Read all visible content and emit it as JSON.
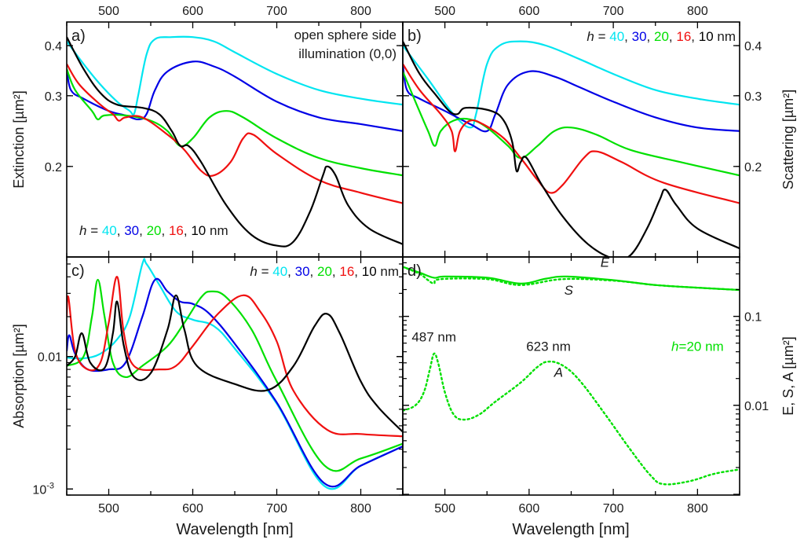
{
  "figure": {
    "xlabel": "Wavelength [nm]",
    "colors": {
      "h40": "#00e5f0",
      "h30": "#0000e6",
      "h20": "#00e000",
      "h16": "#f01010",
      "h10": "#000000"
    }
  },
  "chart_data": [
    {
      "id": "a",
      "type": "line",
      "panel_label": "a)",
      "title": "",
      "xlabel": "Wavelength [nm]",
      "ylabel": "Extinction [µm²]",
      "xlim": [
        450,
        850
      ],
      "ylim": [
        0.119,
        0.458
      ],
      "yscale": "log",
      "xticks": [
        500,
        600,
        700,
        800
      ],
      "yticks": [
        {
          "v": 0.2,
          "label": "0.2"
        },
        {
          "v": 0.3,
          "label": "0.3"
        },
        {
          "v": 0.4,
          "label": "0.4"
        }
      ],
      "annotations": [
        {
          "text": "open sphere side",
          "pos": "top-right-1"
        },
        {
          "text": "illumination (0,0)",
          "pos": "top-right-2"
        }
      ],
      "legend": {
        "pos": "bottom-left",
        "prefix": "h",
        "eq": " = ",
        "items": [
          "40",
          "30",
          "20",
          "16",
          "10"
        ],
        "suffix": " nm"
      },
      "series": [
        {
          "name": "h = 40 nm",
          "color": "#00e5f0",
          "style": "solid",
          "x": [
            450,
            470,
            490,
            510,
            525,
            530,
            535,
            545,
            555,
            575,
            600,
            625,
            650,
            700,
            750,
            800,
            850
          ],
          "y": [
            0.41,
            0.36,
            0.32,
            0.29,
            0.275,
            0.27,
            0.3,
            0.38,
            0.415,
            0.42,
            0.42,
            0.41,
            0.385,
            0.34,
            0.31,
            0.295,
            0.285
          ]
        },
        {
          "name": "h = 30 nm",
          "color": "#0000e6",
          "style": "solid",
          "x": [
            450,
            455,
            470,
            500,
            520,
            535,
            545,
            555,
            570,
            600,
            625,
            650,
            700,
            750,
            800,
            850
          ],
          "y": [
            0.35,
            0.31,
            0.295,
            0.275,
            0.268,
            0.262,
            0.27,
            0.31,
            0.345,
            0.365,
            0.355,
            0.335,
            0.29,
            0.265,
            0.255,
            0.245
          ]
        },
        {
          "name": "h = 20 nm",
          "color": "#00e000",
          "style": "solid",
          "x": [
            450,
            460,
            480,
            487,
            495,
            520,
            550,
            570,
            585,
            600,
            620,
            640,
            660,
            700,
            750,
            800,
            850
          ],
          "y": [
            0.35,
            0.31,
            0.275,
            0.262,
            0.268,
            0.268,
            0.26,
            0.245,
            0.225,
            0.235,
            0.265,
            0.275,
            0.265,
            0.235,
            0.21,
            0.198,
            0.19
          ]
        },
        {
          "name": "h = 16 nm",
          "color": "#f01010",
          "style": "solid",
          "x": [
            450,
            465,
            490,
            505,
            512,
            520,
            540,
            570,
            590,
            610,
            625,
            645,
            660,
            672,
            700,
            750,
            800,
            850
          ],
          "y": [
            0.36,
            0.32,
            0.285,
            0.27,
            0.26,
            0.265,
            0.265,
            0.24,
            0.22,
            0.195,
            0.19,
            0.205,
            0.235,
            0.24,
            0.215,
            0.185,
            0.172,
            0.162
          ]
        },
        {
          "name": "h = 10 nm",
          "color": "#000000",
          "style": "solid",
          "x": [
            450,
            470,
            490,
            510,
            540,
            560,
            575,
            585,
            595,
            610,
            640,
            670,
            700,
            720,
            740,
            755,
            760,
            770,
            785,
            810,
            850
          ],
          "y": [
            0.42,
            0.35,
            0.305,
            0.285,
            0.28,
            0.27,
            0.245,
            0.225,
            0.225,
            0.205,
            0.16,
            0.135,
            0.127,
            0.13,
            0.155,
            0.19,
            0.2,
            0.19,
            0.16,
            0.14,
            0.128
          ]
        }
      ]
    },
    {
      "id": "b",
      "type": "line",
      "panel_label": "b)",
      "title": "",
      "xlabel": "Wavelength [nm]",
      "ylabel": "Scattering  [µm²]",
      "xlim": [
        450,
        850
      ],
      "ylim": [
        0.119,
        0.458
      ],
      "yscale": "log",
      "xticks": [
        500,
        600,
        700,
        800
      ],
      "yticks": [
        {
          "v": 0.2,
          "label": "0.2"
        },
        {
          "v": 0.3,
          "label": "0.3"
        },
        {
          "v": 0.4,
          "label": "0.4"
        }
      ],
      "annotations": [],
      "legend": {
        "pos": "top-right",
        "prefix": "h",
        "eq": " = ",
        "items": [
          "40",
          "30",
          "20",
          "16",
          "10"
        ],
        "suffix": " nm"
      },
      "series": [
        {
          "name": "h = 40 nm",
          "color": "#00e5f0",
          "style": "solid",
          "x": [
            450,
            480,
            510,
            530,
            537,
            550,
            565,
            590,
            620,
            660,
            700,
            750,
            800,
            850
          ],
          "y": [
            0.4,
            0.33,
            0.27,
            0.25,
            0.27,
            0.36,
            0.4,
            0.41,
            0.4,
            0.37,
            0.34,
            0.31,
            0.295,
            0.285
          ]
        },
        {
          "name": "h = 30 nm",
          "color": "#0000e6",
          "style": "solid",
          "x": [
            450,
            455,
            470,
            500,
            530,
            550,
            560,
            575,
            600,
            630,
            660,
            700,
            750,
            800,
            850
          ],
          "y": [
            0.36,
            0.31,
            0.295,
            0.275,
            0.255,
            0.245,
            0.27,
            0.32,
            0.345,
            0.335,
            0.315,
            0.29,
            0.265,
            0.25,
            0.245
          ]
        },
        {
          "name": "h = 20 nm",
          "color": "#00e000",
          "style": "solid",
          "x": [
            450,
            465,
            480,
            488,
            495,
            510,
            530,
            550,
            575,
            590,
            610,
            630,
            650,
            680,
            720,
            780,
            850
          ],
          "y": [
            0.345,
            0.29,
            0.245,
            0.225,
            0.245,
            0.26,
            0.262,
            0.25,
            0.225,
            0.21,
            0.225,
            0.245,
            0.25,
            0.24,
            0.22,
            0.205,
            0.19
          ]
        },
        {
          "name": "h = 16 nm",
          "color": "#f01010",
          "style": "solid",
          "x": [
            450,
            470,
            495,
            508,
            512,
            518,
            530,
            545,
            570,
            590,
            610,
            625,
            640,
            665,
            680,
            710,
            760,
            850
          ],
          "y": [
            0.36,
            0.31,
            0.27,
            0.245,
            0.218,
            0.245,
            0.26,
            0.255,
            0.235,
            0.21,
            0.185,
            0.172,
            0.18,
            0.21,
            0.218,
            0.205,
            0.182,
            0.162
          ]
        },
        {
          "name": "h = 10 nm",
          "color": "#000000",
          "style": "solid",
          "x": [
            450,
            470,
            490,
            505,
            515,
            525,
            555,
            570,
            580,
            585,
            590,
            597,
            615,
            640,
            670,
            700,
            720,
            740,
            755,
            762,
            775,
            800,
            850
          ],
          "y": [
            0.41,
            0.34,
            0.3,
            0.275,
            0.27,
            0.28,
            0.275,
            0.26,
            0.23,
            0.195,
            0.205,
            0.21,
            0.18,
            0.15,
            0.128,
            0.118,
            0.12,
            0.14,
            0.165,
            0.175,
            0.16,
            0.14,
            0.125
          ]
        }
      ]
    },
    {
      "id": "c",
      "type": "line",
      "panel_label": "c)",
      "title": "",
      "xlabel": "Wavelength [nm]",
      "ylabel": "Absorption  [µm²]",
      "xlim": [
        450,
        850
      ],
      "ylim": [
        0.0009,
        0.0565
      ],
      "yscale": "log",
      "xticks": [
        500,
        600,
        700,
        800
      ],
      "yticks": [
        {
          "v": 0.001,
          "label": "10",
          "sup": "-3"
        },
        {
          "v": 0.01,
          "label": "0.01"
        }
      ],
      "annotations": [],
      "legend": {
        "pos": "top-right",
        "prefix": "h",
        "eq": " = ",
        "items": [
          "40",
          "30",
          "20",
          "16",
          "10"
        ],
        "suffix": " nm"
      },
      "series": [
        {
          "name": "h = 40 nm",
          "color": "#00e5f0",
          "style": "solid",
          "x": [
            450,
            470,
            490,
            510,
            525,
            540,
            545,
            560,
            580,
            600,
            625,
            650,
            700,
            757,
            800,
            850
          ],
          "y": [
            0.0098,
            0.0097,
            0.0105,
            0.0135,
            0.02,
            0.05,
            0.05,
            0.035,
            0.022,
            0.019,
            0.017,
            0.0115,
            0.0044,
            0.00105,
            0.0015,
            0.0021
          ]
        },
        {
          "name": "h = 30 nm",
          "color": "#0000e6",
          "style": "solid",
          "x": [
            450,
            453,
            460,
            475,
            500,
            520,
            540,
            555,
            570,
            585,
            600,
            620,
            650,
            700,
            757,
            800,
            850
          ],
          "y": [
            0.011,
            0.0145,
            0.0105,
            0.008,
            0.008,
            0.009,
            0.02,
            0.038,
            0.031,
            0.026,
            0.025,
            0.021,
            0.0125,
            0.0045,
            0.0011,
            0.0015,
            0.0021
          ]
        },
        {
          "name": "h = 20 nm",
          "color": "#00e000",
          "style": "solid",
          "x": [
            450,
            470,
            480,
            487,
            495,
            505,
            520,
            540,
            570,
            590,
            610,
            622,
            640,
            670,
            700,
            757,
            800,
            850
          ],
          "y": [
            0.0085,
            0.01,
            0.02,
            0.038,
            0.02,
            0.009,
            0.007,
            0.0085,
            0.012,
            0.018,
            0.028,
            0.031,
            0.028,
            0.016,
            0.0065,
            0.0015,
            0.0017,
            0.0022
          ]
        },
        {
          "name": "h = 16 nm",
          "color": "#f01010",
          "style": "solid",
          "x": [
            450,
            452,
            460,
            475,
            490,
            500,
            510,
            518,
            530,
            560,
            580,
            600,
            630,
            660,
            680,
            700,
            720,
            760,
            800,
            850
          ],
          "y": [
            0.02,
            0.028,
            0.011,
            0.008,
            0.009,
            0.018,
            0.04,
            0.015,
            0.0085,
            0.008,
            0.0085,
            0.012,
            0.021,
            0.029,
            0.022,
            0.013,
            0.0055,
            0.0028,
            0.0026,
            0.0025
          ]
        },
        {
          "name": "h = 10 nm",
          "color": "#000000",
          "style": "solid",
          "x": [
            450,
            460,
            468,
            478,
            495,
            505,
            510,
            518,
            530,
            550,
            570,
            580,
            590,
            605,
            650,
            690,
            720,
            745,
            760,
            775,
            800,
            820,
            850
          ],
          "y": [
            0.0085,
            0.01,
            0.015,
            0.009,
            0.0082,
            0.015,
            0.026,
            0.012,
            0.007,
            0.0075,
            0.016,
            0.029,
            0.016,
            0.0085,
            0.0062,
            0.0056,
            0.0085,
            0.017,
            0.021,
            0.015,
            0.0065,
            0.0042,
            0.0027
          ]
        }
      ]
    },
    {
      "id": "d",
      "type": "line",
      "panel_label": "d)",
      "title": "",
      "xlabel": "Wavelength [nm]",
      "ylabel": "E, S, A  [µm²]",
      "xlim": [
        450,
        850
      ],
      "ylim": [
        0.00098,
        0.465
      ],
      "yscale": "log",
      "xticks": [
        500,
        600,
        700,
        800
      ],
      "yticks": [
        {
          "v": 0.01,
          "label": "0.01"
        },
        {
          "v": 0.1,
          "label": "0.1"
        }
      ],
      "annotations": [
        {
          "text": "E",
          "italic": true,
          "x": 690,
          "y": 0.36
        },
        {
          "text": "S",
          "italic": true,
          "x": 647,
          "y": 0.175
        },
        {
          "text": "487 nm",
          "x": 487,
          "y": 0.052
        },
        {
          "text": "623 nm",
          "x": 623,
          "y": 0.041
        },
        {
          "text": "A",
          "italic": true,
          "x": 635,
          "y": 0.021
        },
        {
          "text": "h=20 nm",
          "color": "#00e000",
          "x": 800,
          "y": 0.041
        }
      ],
      "legend": null,
      "series": [
        {
          "name": "E",
          "color": "#00e000",
          "style": "solid",
          "x": [
            450,
            470,
            487,
            500,
            550,
            590,
            620,
            645,
            700,
            750,
            800,
            850
          ],
          "y": [
            0.36,
            0.31,
            0.272,
            0.28,
            0.272,
            0.234,
            0.265,
            0.28,
            0.255,
            0.225,
            0.21,
            0.198
          ]
        },
        {
          "name": "S",
          "color": "#00e000",
          "style": "dotted",
          "x": [
            450,
            470,
            480,
            487,
            495,
            550,
            590,
            640,
            700,
            750,
            800,
            850
          ],
          "y": [
            0.36,
            0.3,
            0.255,
            0.235,
            0.262,
            0.262,
            0.225,
            0.262,
            0.252,
            0.225,
            0.21,
            0.198
          ]
        },
        {
          "name": "A",
          "color": "#00e000",
          "style": "dotted",
          "x": [
            450,
            465,
            475,
            482,
            487,
            492,
            500,
            510,
            522,
            540,
            560,
            590,
            610,
            623,
            640,
            660,
            690,
            720,
            745,
            760,
            790,
            820,
            850
          ],
          "y": [
            0.0087,
            0.01,
            0.014,
            0.025,
            0.038,
            0.03,
            0.014,
            0.008,
            0.0069,
            0.0078,
            0.011,
            0.018,
            0.027,
            0.031,
            0.028,
            0.019,
            0.008,
            0.0032,
            0.0016,
            0.0013,
            0.0014,
            0.0017,
            0.0019
          ]
        }
      ]
    }
  ]
}
